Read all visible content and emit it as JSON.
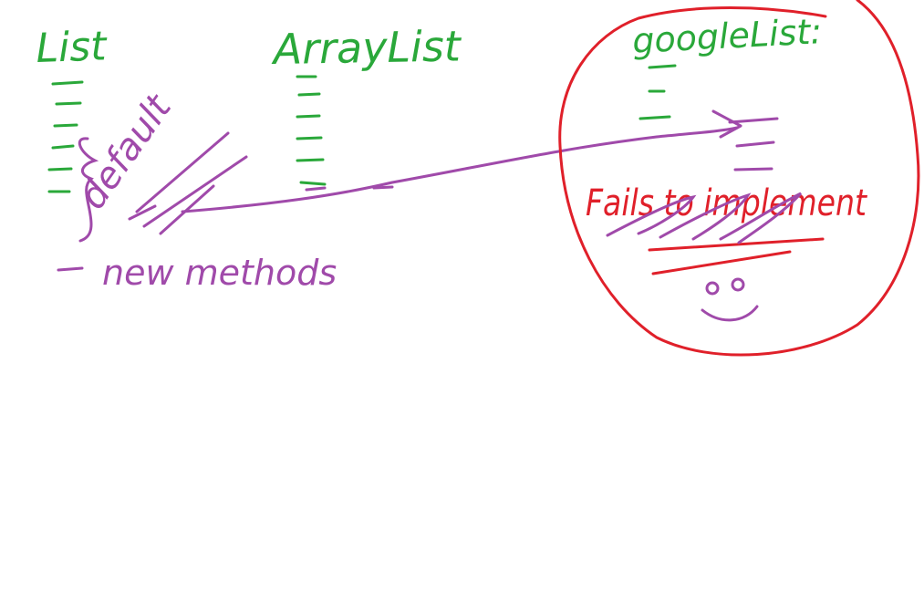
{
  "labels": {
    "list": "List",
    "arraylist": "ArrayList",
    "googlelist": "googleList:",
    "default": "default",
    "new_methods": "new methods",
    "fails": "Fails to implement"
  },
  "colors": {
    "green": "#2aa83a",
    "purple": "#a04aaa",
    "red": "#e0202a",
    "background": "#ffffff"
  },
  "icons": {
    "smiley": "smiley-face-icon"
  }
}
